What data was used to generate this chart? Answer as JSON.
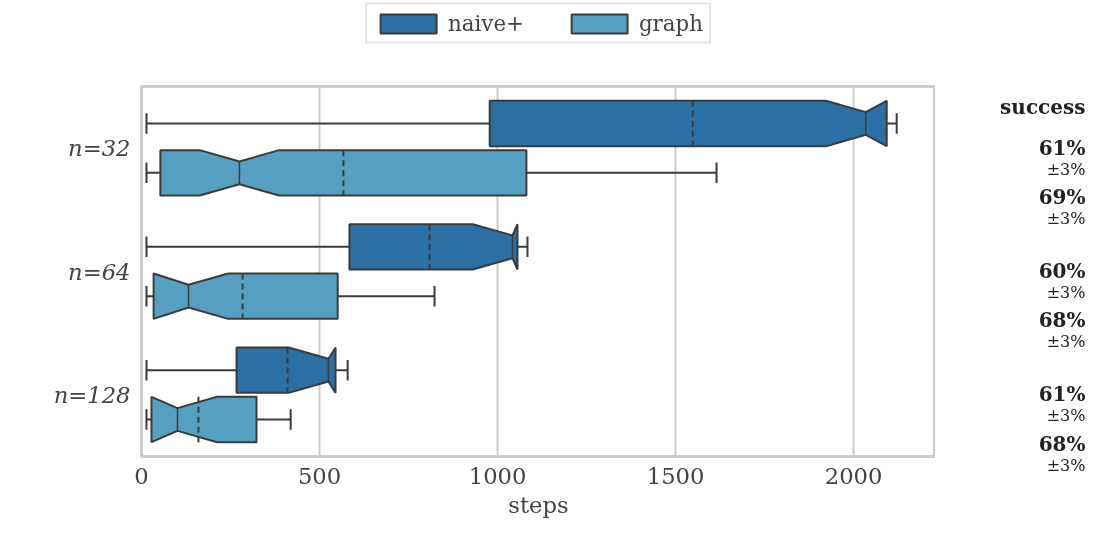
{
  "chart_data": {
    "type": "box",
    "orientation": "horizontal",
    "xlabel": "steps",
    "categories": [
      "n=32",
      "n=64",
      "n=128"
    ],
    "series": [
      {
        "name": "naive+",
        "color": "#2a70a4",
        "boxes": [
          {
            "low": 14,
            "q1": 978,
            "median": 2034,
            "q3": 2093,
            "high": 2121,
            "mean": 1548
          },
          {
            "low": 14,
            "q1": 584,
            "median": 1042,
            "q3": 1056,
            "high": 1084,
            "mean": 809
          },
          {
            "low": 14,
            "q1": 267,
            "median": 525,
            "q3": 545,
            "high": 579,
            "mean": 410
          }
        ]
      },
      {
        "name": "graph",
        "color": "#55a0c0",
        "boxes": [
          {
            "low": 14,
            "q1": 53,
            "median": 275,
            "q3": 1081,
            "high": 1615,
            "mean": 567
          },
          {
            "low": 14,
            "q1": 34,
            "median": 132,
            "q3": 551,
            "high": 823,
            "mean": 284
          },
          {
            "low": 14,
            "q1": 28,
            "median": 101,
            "q3": 323,
            "high": 419,
            "mean": 160
          }
        ]
      }
    ],
    "xlim": [
      0,
      2230
    ],
    "xticks": [
      0,
      500,
      1000,
      1500,
      2000
    ],
    "grid": "x",
    "legend": "top",
    "annotations": [
      "success",
      "61%",
      "±3%",
      "69%",
      "±3%",
      "60%",
      "±3%",
      "68%",
      "±3%",
      "61%",
      "±3%",
      "68%",
      "±3%"
    ]
  }
}
